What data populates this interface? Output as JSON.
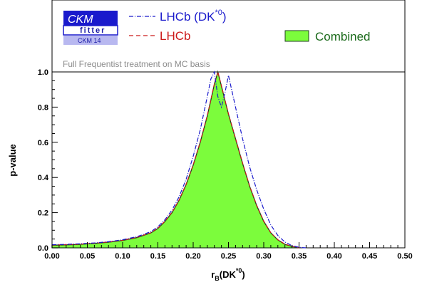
{
  "logo": {
    "top": "CKM",
    "middle": "fitter",
    "bottom": "CKM 14"
  },
  "caption": "Full Frequentist treatment on MC basis",
  "colors": {
    "combined_fill": "#7cfc3c",
    "combined_edge": "#1f3f1f",
    "lhcb_dk": "#1a1acc",
    "lhcb": "#cc1a1a",
    "logo_blue": "#1a1acc",
    "logo_light": "#b8b8f0"
  },
  "chart_data": {
    "type": "area",
    "title": "",
    "xlabel_main": "r",
    "xlabel_sub": "B",
    "xlabel_paren": "(DK",
    "xlabel_sup": "*0",
    "xlabel_close": ")",
    "ylabel": "p-value",
    "xlim": [
      0,
      0.5
    ],
    "ylim": [
      0,
      1.0
    ],
    "xticks": [
      "0.00",
      "0.05",
      "0.10",
      "0.15",
      "0.20",
      "0.25",
      "0.30",
      "0.35",
      "0.40",
      "0.45",
      "0.50"
    ],
    "yticks": [
      "0.0",
      "0.2",
      "0.4",
      "0.6",
      "0.8",
      "1.0"
    ],
    "legend": [
      {
        "key": "lhcb_dk",
        "label": "LHCb (DK",
        "sup": "*0",
        "close": ")",
        "style": "dash-dot"
      },
      {
        "key": "lhcb",
        "label": "LHCb",
        "style": "dashed"
      },
      {
        "key": "combined",
        "label": "Combined",
        "style": "fill"
      }
    ],
    "series": [
      {
        "name": "Combined",
        "x": [
          0.0,
          0.02,
          0.04,
          0.06,
          0.08,
          0.1,
          0.12,
          0.14,
          0.15,
          0.16,
          0.17,
          0.18,
          0.19,
          0.2,
          0.21,
          0.22,
          0.225,
          0.23,
          0.235,
          0.24,
          0.245,
          0.25,
          0.26,
          0.27,
          0.28,
          0.29,
          0.3,
          0.31,
          0.32,
          0.33,
          0.34,
          0.35
        ],
        "y": [
          0.015,
          0.017,
          0.02,
          0.025,
          0.032,
          0.042,
          0.058,
          0.085,
          0.11,
          0.15,
          0.2,
          0.27,
          0.36,
          0.47,
          0.6,
          0.75,
          0.84,
          0.93,
          1.0,
          0.92,
          0.84,
          0.76,
          0.62,
          0.48,
          0.35,
          0.24,
          0.15,
          0.085,
          0.045,
          0.02,
          0.008,
          0.0
        ]
      },
      {
        "name": "LHCb",
        "x": [
          0.0,
          0.02,
          0.04,
          0.06,
          0.08,
          0.1,
          0.12,
          0.14,
          0.15,
          0.16,
          0.17,
          0.18,
          0.19,
          0.2,
          0.21,
          0.22,
          0.225,
          0.23,
          0.235,
          0.24,
          0.245,
          0.25,
          0.26,
          0.27,
          0.28,
          0.29,
          0.3,
          0.31,
          0.32,
          0.33,
          0.34,
          0.35
        ],
        "y": [
          0.016,
          0.018,
          0.021,
          0.026,
          0.033,
          0.043,
          0.059,
          0.086,
          0.112,
          0.152,
          0.202,
          0.272,
          0.362,
          0.472,
          0.602,
          0.752,
          0.842,
          0.932,
          1.0,
          0.922,
          0.842,
          0.762,
          0.622,
          0.482,
          0.352,
          0.242,
          0.152,
          0.086,
          0.046,
          0.021,
          0.009,
          0.0
        ]
      },
      {
        "name": "LHCb (DK*0)",
        "x": [
          0.0,
          0.02,
          0.04,
          0.06,
          0.08,
          0.1,
          0.12,
          0.14,
          0.15,
          0.16,
          0.17,
          0.18,
          0.19,
          0.2,
          0.21,
          0.22,
          0.225,
          0.23,
          0.235,
          0.24,
          0.245,
          0.25,
          0.26,
          0.27,
          0.28,
          0.29,
          0.3,
          0.31,
          0.32,
          0.33,
          0.34,
          0.35,
          0.36
        ],
        "y": [
          0.018,
          0.02,
          0.023,
          0.028,
          0.035,
          0.046,
          0.063,
          0.092,
          0.12,
          0.16,
          0.215,
          0.29,
          0.39,
          0.52,
          0.67,
          0.86,
          0.96,
          1.0,
          0.86,
          0.8,
          0.88,
          0.98,
          0.8,
          0.62,
          0.46,
          0.33,
          0.22,
          0.13,
          0.07,
          0.033,
          0.012,
          0.003,
          0.0
        ]
      }
    ]
  }
}
